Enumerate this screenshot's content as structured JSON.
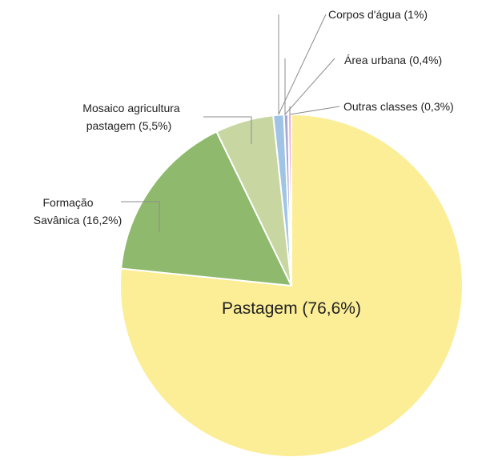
{
  "chart_data": {
    "type": "pie",
    "categories": [
      "Pastagem",
      "Formação Savânica",
      "Mosaico agricultura pastagem",
      "Corpos d'água",
      "Área urbana",
      "Outras classes"
    ],
    "values": [
      76.6,
      16.2,
      5.5,
      1.0,
      0.4,
      0.3
    ],
    "colors": [
      "#fcee96",
      "#8fba6e",
      "#c8d6a2",
      "#9fc4e6",
      "#a6a8d2",
      "#eba6d6"
    ],
    "labels": {
      "pastagem": "Pastagem (76,6%)",
      "formacao_line1": "Formação",
      "formacao_line2": "Savânica (16,2%)",
      "mosaico_line1": "Mosaico agricultura",
      "mosaico_line2": "pastagem (5,5%)",
      "corpos": "Corpos d'água (1%)",
      "urbana": "Área urbana (0,4%)",
      "outras": "Outras classes (0,3%)"
    },
    "legend": "none",
    "grid": false
  }
}
